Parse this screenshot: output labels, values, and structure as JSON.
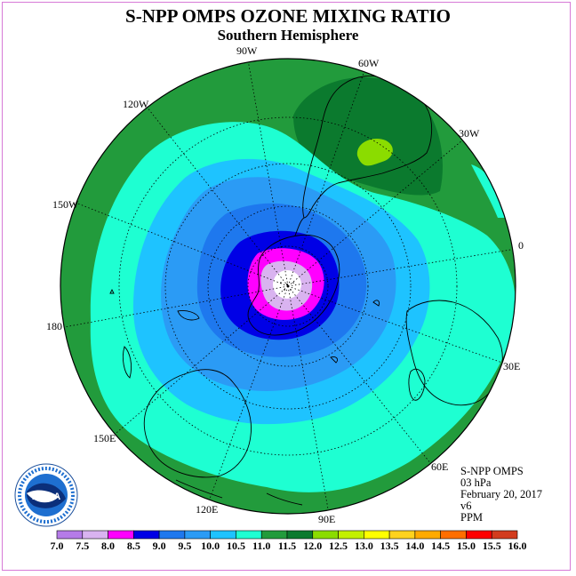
{
  "title": "S-NPP OMPS OZONE MIXING RATIO",
  "subtitle": "Southern Hemisphere",
  "longitude_labels": [
    "90W",
    "60W",
    "120W",
    "30W",
    "150W",
    "0",
    "180",
    "30E",
    "150E",
    "60E",
    "120E",
    "90E"
  ],
  "info": {
    "instrument": "S-NPP OMPS",
    "level": "03 hPa",
    "date": "February 20, 2017",
    "version": "v6",
    "units": "PPM"
  },
  "logo_text": "NOAA",
  "colorbar": {
    "ticks": [
      "7.0",
      "7.5",
      "8.0",
      "8.5",
      "9.0",
      "9.5",
      "10.0",
      "10.5",
      "11.0",
      "11.5",
      "12.0",
      "12.5",
      "13.0",
      "13.5",
      "14.0",
      "14.5",
      "15.0",
      "15.5",
      "16.0"
    ],
    "colors": [
      "#b57be8",
      "#d9b3f0",
      "#ff00ff",
      "#0000e6",
      "#1e78ee",
      "#2b9bf5",
      "#1ec3ff",
      "#1effd2",
      "#229b3c",
      "#0b7a2e",
      "#8bdc00",
      "#c3f000",
      "#ffff00",
      "#ffd21e",
      "#ffaa00",
      "#ff6e00",
      "#ff0000",
      "#d23c1e",
      "#8b5a3c"
    ]
  },
  "map_data": {
    "projection": "south-polar-stereographic",
    "field": "ozone mixing ratio",
    "colors": {
      "outer_green": "#229b3c",
      "dark_green": "#0b7a2e",
      "yellow_green": "#8bdc00",
      "aqua": "#1effd2",
      "cyan": "#1ec3ff",
      "light_blue": "#2b9bf5",
      "mid_blue": "#1e78ee",
      "dark_blue": "#0000e6",
      "magenta": "#ff00ff",
      "lavender": "#d9b3f0",
      "center": "#ffffff"
    }
  }
}
